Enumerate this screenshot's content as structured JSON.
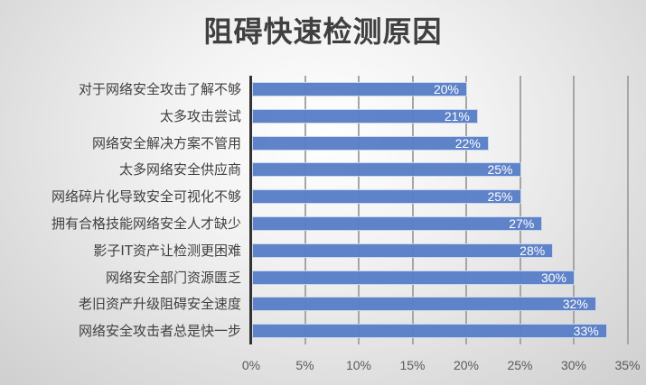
{
  "title": "阻碍快速检测原因",
  "chart_data": {
    "type": "bar",
    "orientation": "horizontal",
    "title": "阻碍快速检测原因",
    "xlabel": "",
    "ylabel": "",
    "xlim": [
      0,
      35
    ],
    "x_ticks": [
      "0%",
      "5%",
      "10%",
      "15%",
      "20%",
      "25%",
      "30%",
      "35%"
    ],
    "grid": "vertical",
    "legend": "none",
    "bar_color": "#5b80c8",
    "categories": [
      "对于网络安全攻击了解不够",
      "太多攻击尝试",
      "网络安全解决方案不管用",
      "太多网络安全供应商",
      "网络碎片化导致安全可视化不够",
      "拥有合格技能网络安全人才缺少",
      "影子IT资产让检测更困难",
      "网络安全部门资源匮乏",
      "老旧资产升级阻碍安全速度",
      "网络安全攻击者总是快一步"
    ],
    "values": [
      20,
      21,
      22,
      25,
      25,
      27,
      28,
      30,
      32,
      33
    ],
    "value_labels": [
      "20%",
      "21%",
      "22%",
      "25%",
      "25%",
      "27%",
      "28%",
      "30%",
      "32%",
      "33%"
    ]
  }
}
